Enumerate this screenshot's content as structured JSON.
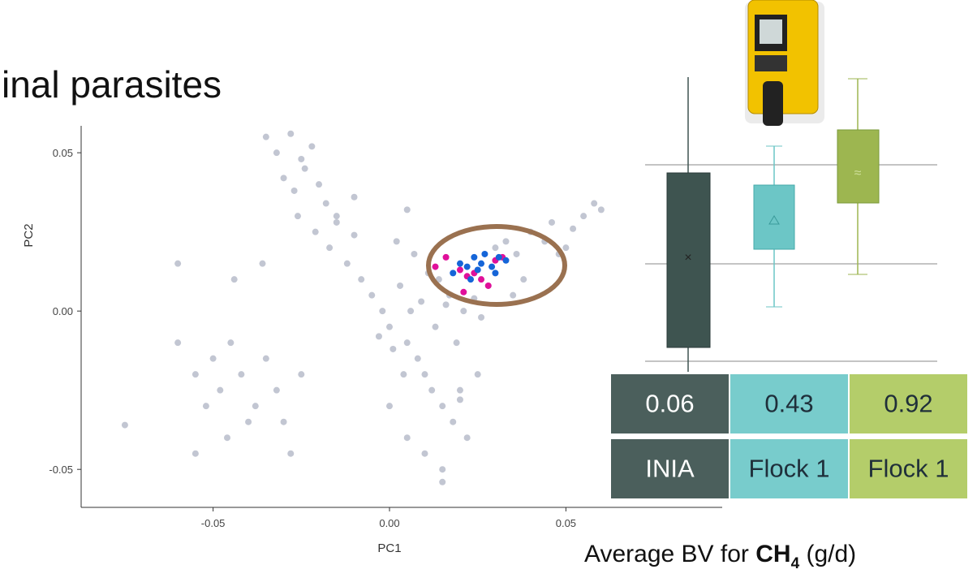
{
  "title": "inal parasites",
  "chart_data": {
    "type": "scatter",
    "xlabel": "PC1",
    "ylabel": "PC2",
    "xlim": [
      -0.0874,
      0.0943
    ],
    "ylim": [
      -0.062,
      0.0585
    ],
    "xticks": [
      -0.05,
      {
        "value": 0,
        "label": "0.00"
      },
      0.05
    ],
    "yticks": [
      -0.05,
      {
        "value": 0,
        "label": "0.00"
      },
      0.05
    ],
    "series": [
      {
        "color": "#c2c6d2",
        "x": [
          -0.035,
          -0.032,
          -0.028,
          -0.025,
          -0.022,
          -0.03,
          -0.027,
          -0.024,
          -0.02,
          -0.018,
          -0.015,
          -0.026,
          -0.021,
          -0.017,
          -0.012,
          -0.01,
          -0.008,
          -0.005,
          -0.002,
          0.0,
          0.003,
          0.005,
          0.008,
          0.01,
          0.012,
          0.015,
          0.018,
          0.02,
          0.022,
          0.006,
          0.004,
          0.001,
          -0.003,
          0.009,
          0.013,
          0.016,
          0.019,
          0.011,
          0.007,
          0.002,
          0.014,
          0.017,
          0.021,
          0.024,
          0.026,
          0.028,
          0.03,
          0.033,
          0.036,
          0.04,
          0.044,
          0.048,
          0.052,
          0.055,
          0.058,
          0.06,
          0.05,
          0.046,
          -0.045,
          -0.05,
          -0.048,
          -0.042,
          -0.038,
          -0.035,
          -0.032,
          -0.04,
          -0.046,
          -0.052,
          -0.055,
          -0.06,
          -0.03,
          -0.028,
          -0.025,
          -0.036,
          -0.044,
          -0.06,
          -0.075,
          0.0,
          0.005,
          0.01,
          0.015,
          0.02,
          0.025,
          -0.015,
          -0.01,
          -0.055,
          0.038,
          0.035,
          0.015,
          0.005
        ],
        "values": [
          0.055,
          0.05,
          0.056,
          0.048,
          0.052,
          0.042,
          0.038,
          0.045,
          0.04,
          0.034,
          0.03,
          0.03,
          0.025,
          0.02,
          0.015,
          0.024,
          0.01,
          0.005,
          0.0,
          -0.005,
          0.008,
          -0.01,
          -0.015,
          -0.02,
          -0.025,
          -0.03,
          -0.035,
          -0.028,
          -0.04,
          0.0,
          -0.02,
          -0.012,
          -0.008,
          0.003,
          -0.005,
          0.002,
          -0.01,
          0.012,
          0.018,
          0.022,
          0.01,
          0.005,
          0.0,
          0.004,
          -0.002,
          0.008,
          0.02,
          0.022,
          0.018,
          0.025,
          0.022,
          0.018,
          0.026,
          0.03,
          0.034,
          0.032,
          0.02,
          0.028,
          -0.01,
          -0.015,
          -0.025,
          -0.02,
          -0.03,
          -0.015,
          -0.025,
          -0.035,
          -0.04,
          -0.03,
          -0.02,
          -0.01,
          -0.035,
          -0.045,
          -0.02,
          0.015,
          0.01,
          0.015,
          -0.036,
          -0.03,
          -0.04,
          -0.045,
          -0.05,
          -0.025,
          -0.02,
          0.028,
          0.036,
          -0.045,
          0.01,
          0.005,
          -0.054,
          0.032
        ]
      },
      {
        "color": "#e0109a",
        "x": [
          0.013,
          0.016,
          0.021,
          0.024,
          0.026,
          0.03,
          0.032,
          0.02,
          0.028,
          0.022
        ],
        "values": [
          0.014,
          0.017,
          0.006,
          0.012,
          0.01,
          0.016,
          0.017,
          0.013,
          0.008,
          0.011
        ]
      },
      {
        "color": "#1565d8",
        "x": [
          0.018,
          0.02,
          0.022,
          0.024,
          0.025,
          0.026,
          0.027,
          0.029,
          0.03,
          0.031,
          0.033,
          0.023
        ],
        "values": [
          0.012,
          0.015,
          0.014,
          0.017,
          0.013,
          0.015,
          0.018,
          0.014,
          0.012,
          0.017,
          0.016,
          0.01
        ]
      }
    ]
  },
  "table": {
    "rows": [
      [
        "0.06",
        "0.43",
        "0.92"
      ],
      [
        "INIA",
        "Flock 1",
        "Flock 1"
      ]
    ],
    "colors": [
      "#4b5f5c",
      "#78cccc",
      "#b4cd6a"
    ]
  },
  "caption": {
    "prefix": "Average BV for ",
    "formula": "CH",
    "subscript": "4",
    "unit": " (g/d)"
  }
}
